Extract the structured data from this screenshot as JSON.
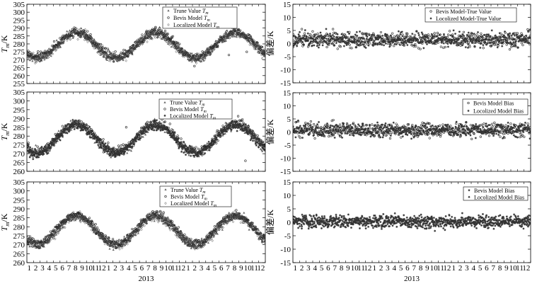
{
  "chart_data": [
    {
      "type": "scatter",
      "title": "",
      "ylabel": "T_m/K",
      "ylim": [
        255,
        305
      ],
      "yticks": [
        255,
        260,
        265,
        270,
        275,
        280,
        285,
        290,
        295,
        300,
        305
      ],
      "xticks": [],
      "xtitle": "",
      "legend": "top-right",
      "series": [
        {
          "name": "Trune Value T_m",
          "marker": "triangle"
        },
        {
          "name": "Bevis Model T_m",
          "marker": "circle"
        },
        {
          "name": "Localized Model T_m",
          "marker": "diamond"
        }
      ],
      "pattern": {
        "mean": 279,
        "amplitude": 8,
        "peaks_month": [
          7.5,
          19.5,
          31.5
        ],
        "scatter": 5,
        "outliers": [
          [
            24.5,
            273
          ],
          [
            25.3,
            266
          ],
          [
            30.5,
            273
          ],
          [
            33.2,
            275
          ]
        ]
      }
    },
    {
      "type": "scatter",
      "title": "",
      "ylabel": "偏差/K",
      "ylim": [
        -15,
        15
      ],
      "yticks": [
        -15,
        -10,
        -5,
        0,
        5,
        10,
        15
      ],
      "xticks": [],
      "xtitle": "",
      "legend": "top-right",
      "series": [
        {
          "name": "Bevis Model-True Value",
          "marker": "circle"
        },
        {
          "name": "Locolized Model-True Value",
          "marker": "star"
        }
      ],
      "pattern": {
        "center": 1.5,
        "spread": 3.2
      }
    },
    {
      "type": "scatter",
      "title": "",
      "ylabel": "T_m/K",
      "ylim": [
        260,
        305
      ],
      "yticks": [
        260,
        265,
        270,
        275,
        280,
        285,
        290,
        295,
        300,
        305
      ],
      "xticks": [],
      "xtitle": "",
      "legend": "top-right",
      "series": [
        {
          "name": "Trune Value T_m",
          "marker": "triangle"
        },
        {
          "name": "Bevis Model T_m",
          "marker": "circle"
        },
        {
          "name": "Localized Model T_m",
          "marker": "star"
        }
      ],
      "pattern": {
        "mean": 278.5,
        "amplitude": 8,
        "peaks_month": [
          7.5,
          19.5,
          31.5
        ],
        "scatter": 5,
        "outliers": [
          [
            15,
            285
          ],
          [
            33,
            266
          ],
          [
            28,
            275
          ]
        ]
      }
    },
    {
      "type": "scatter",
      "title": "",
      "ylabel": "偏差/K",
      "ylim": [
        -15,
        15
      ],
      "yticks": [
        -15,
        -10,
        -5,
        0,
        5,
        10,
        15
      ],
      "xticks": [],
      "xtitle": "",
      "legend": "top-right",
      "series": [
        {
          "name": "Bevis Model Bias",
          "marker": "circle"
        },
        {
          "name": "Locolized Model Bias",
          "marker": "star"
        }
      ],
      "pattern": {
        "center": 0.8,
        "spread": 3.0
      }
    },
    {
      "type": "scatter",
      "title": "",
      "ylabel": "T_m/K",
      "ylim": [
        260,
        305
      ],
      "yticks": [
        260,
        265,
        270,
        275,
        280,
        285,
        290,
        295,
        300,
        305
      ],
      "xticks": [
        "1",
        "2",
        "3",
        "4",
        "5",
        "6",
        "7",
        "8",
        "9",
        "10",
        "11",
        "12",
        "1",
        "2",
        "3",
        "4",
        "5",
        "6",
        "7",
        "8",
        "9",
        "10",
        "11",
        "12",
        "1",
        "2",
        "3",
        "4",
        "5",
        "6",
        "7",
        "8",
        "9",
        "10",
        "11",
        "12"
      ],
      "xtitle": "2013",
      "legend": "top-right",
      "series": [
        {
          "name": "Trune Value T_m",
          "marker": "triangle"
        },
        {
          "name": "Bevis Model T_m",
          "marker": "circle"
        },
        {
          "name": "Localized Model T_m",
          "marker": "diamond"
        }
      ],
      "pattern": {
        "mean": 278,
        "amplitude": 8,
        "peaks_month": [
          7.5,
          19.5,
          31.5
        ],
        "scatter": 4.5,
        "outliers": []
      }
    },
    {
      "type": "scatter",
      "title": "",
      "ylabel": "偏差/K",
      "ylim": [
        -15,
        15
      ],
      "yticks": [
        -15,
        -10,
        -5,
        0,
        5,
        10,
        15
      ],
      "xticks": [
        "1",
        "2",
        "3",
        "4",
        "5",
        "6",
        "7",
        "8",
        "9",
        "10",
        "11",
        "12",
        "1",
        "2",
        "3",
        "4",
        "5",
        "6",
        "7",
        "8",
        "9",
        "10",
        "11",
        "12",
        "1",
        "2",
        "3",
        "4",
        "5",
        "6",
        "7",
        "8",
        "9",
        "10",
        "11",
        "12"
      ],
      "xtitle": "2013",
      "legend": "top-right",
      "series": [
        {
          "name": "Bevis Model Bias",
          "marker": "star"
        },
        {
          "name": "Locolized Model Bias",
          "marker": "star"
        }
      ],
      "pattern": {
        "center": 0.3,
        "spread": 2.6
      }
    }
  ]
}
